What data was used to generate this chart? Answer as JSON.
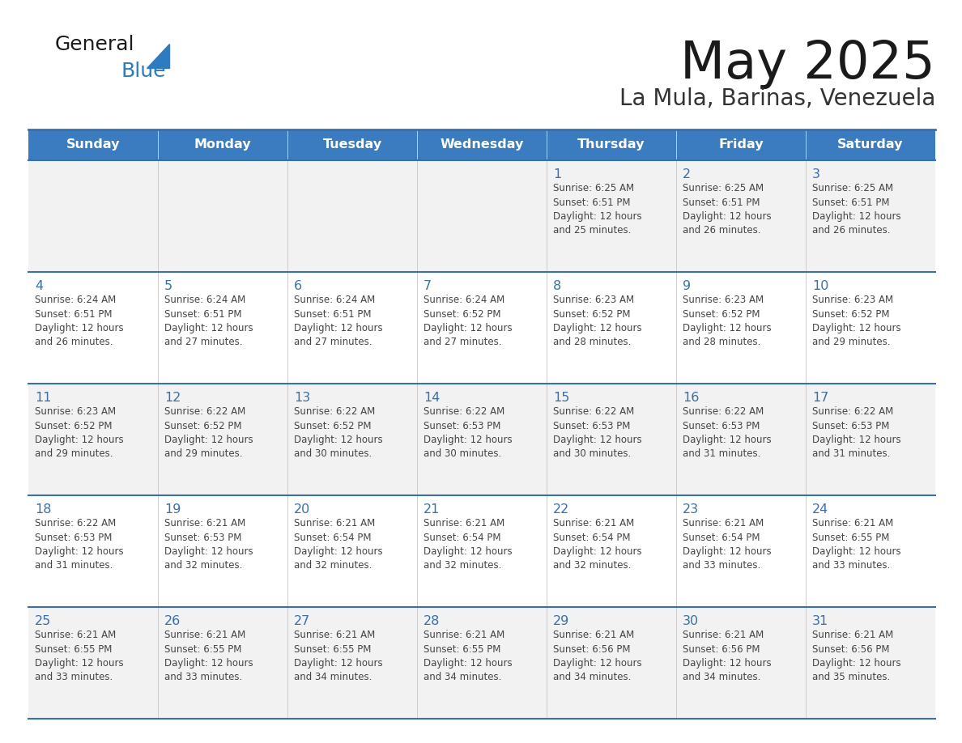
{
  "title": "May 2025",
  "subtitle": "La Mula, Barinas, Venezuela",
  "days_of_week": [
    "Sunday",
    "Monday",
    "Tuesday",
    "Wednesday",
    "Thursday",
    "Friday",
    "Saturday"
  ],
  "header_bg": "#3a7cbf",
  "header_text": "#ffffff",
  "row_bg": [
    "#f2f2f2",
    "#ffffff",
    "#f2f2f2",
    "#ffffff",
    "#f2f2f2"
  ],
  "separator_color": "#3a6fa8",
  "day_num_color": "#3a6fa8",
  "cell_text_color": "#444444",
  "title_color": "#1a1a1a",
  "subtitle_color": "#333333",
  "logo_general_color": "#1a1a1a",
  "logo_blue_color": "#2e7bbf",
  "weeks": [
    [
      {
        "day": null,
        "text": ""
      },
      {
        "day": null,
        "text": ""
      },
      {
        "day": null,
        "text": ""
      },
      {
        "day": null,
        "text": ""
      },
      {
        "day": 1,
        "text": "Sunrise: 6:25 AM\nSunset: 6:51 PM\nDaylight: 12 hours\nand 25 minutes."
      },
      {
        "day": 2,
        "text": "Sunrise: 6:25 AM\nSunset: 6:51 PM\nDaylight: 12 hours\nand 26 minutes."
      },
      {
        "day": 3,
        "text": "Sunrise: 6:25 AM\nSunset: 6:51 PM\nDaylight: 12 hours\nand 26 minutes."
      }
    ],
    [
      {
        "day": 4,
        "text": "Sunrise: 6:24 AM\nSunset: 6:51 PM\nDaylight: 12 hours\nand 26 minutes."
      },
      {
        "day": 5,
        "text": "Sunrise: 6:24 AM\nSunset: 6:51 PM\nDaylight: 12 hours\nand 27 minutes."
      },
      {
        "day": 6,
        "text": "Sunrise: 6:24 AM\nSunset: 6:51 PM\nDaylight: 12 hours\nand 27 minutes."
      },
      {
        "day": 7,
        "text": "Sunrise: 6:24 AM\nSunset: 6:52 PM\nDaylight: 12 hours\nand 27 minutes."
      },
      {
        "day": 8,
        "text": "Sunrise: 6:23 AM\nSunset: 6:52 PM\nDaylight: 12 hours\nand 28 minutes."
      },
      {
        "day": 9,
        "text": "Sunrise: 6:23 AM\nSunset: 6:52 PM\nDaylight: 12 hours\nand 28 minutes."
      },
      {
        "day": 10,
        "text": "Sunrise: 6:23 AM\nSunset: 6:52 PM\nDaylight: 12 hours\nand 29 minutes."
      }
    ],
    [
      {
        "day": 11,
        "text": "Sunrise: 6:23 AM\nSunset: 6:52 PM\nDaylight: 12 hours\nand 29 minutes."
      },
      {
        "day": 12,
        "text": "Sunrise: 6:22 AM\nSunset: 6:52 PM\nDaylight: 12 hours\nand 29 minutes."
      },
      {
        "day": 13,
        "text": "Sunrise: 6:22 AM\nSunset: 6:52 PM\nDaylight: 12 hours\nand 30 minutes."
      },
      {
        "day": 14,
        "text": "Sunrise: 6:22 AM\nSunset: 6:53 PM\nDaylight: 12 hours\nand 30 minutes."
      },
      {
        "day": 15,
        "text": "Sunrise: 6:22 AM\nSunset: 6:53 PM\nDaylight: 12 hours\nand 30 minutes."
      },
      {
        "day": 16,
        "text": "Sunrise: 6:22 AM\nSunset: 6:53 PM\nDaylight: 12 hours\nand 31 minutes."
      },
      {
        "day": 17,
        "text": "Sunrise: 6:22 AM\nSunset: 6:53 PM\nDaylight: 12 hours\nand 31 minutes."
      }
    ],
    [
      {
        "day": 18,
        "text": "Sunrise: 6:22 AM\nSunset: 6:53 PM\nDaylight: 12 hours\nand 31 minutes."
      },
      {
        "day": 19,
        "text": "Sunrise: 6:21 AM\nSunset: 6:53 PM\nDaylight: 12 hours\nand 32 minutes."
      },
      {
        "day": 20,
        "text": "Sunrise: 6:21 AM\nSunset: 6:54 PM\nDaylight: 12 hours\nand 32 minutes."
      },
      {
        "day": 21,
        "text": "Sunrise: 6:21 AM\nSunset: 6:54 PM\nDaylight: 12 hours\nand 32 minutes."
      },
      {
        "day": 22,
        "text": "Sunrise: 6:21 AM\nSunset: 6:54 PM\nDaylight: 12 hours\nand 32 minutes."
      },
      {
        "day": 23,
        "text": "Sunrise: 6:21 AM\nSunset: 6:54 PM\nDaylight: 12 hours\nand 33 minutes."
      },
      {
        "day": 24,
        "text": "Sunrise: 6:21 AM\nSunset: 6:55 PM\nDaylight: 12 hours\nand 33 minutes."
      }
    ],
    [
      {
        "day": 25,
        "text": "Sunrise: 6:21 AM\nSunset: 6:55 PM\nDaylight: 12 hours\nand 33 minutes."
      },
      {
        "day": 26,
        "text": "Sunrise: 6:21 AM\nSunset: 6:55 PM\nDaylight: 12 hours\nand 33 minutes."
      },
      {
        "day": 27,
        "text": "Sunrise: 6:21 AM\nSunset: 6:55 PM\nDaylight: 12 hours\nand 34 minutes."
      },
      {
        "day": 28,
        "text": "Sunrise: 6:21 AM\nSunset: 6:55 PM\nDaylight: 12 hours\nand 34 minutes."
      },
      {
        "day": 29,
        "text": "Sunrise: 6:21 AM\nSunset: 6:56 PM\nDaylight: 12 hours\nand 34 minutes."
      },
      {
        "day": 30,
        "text": "Sunrise: 6:21 AM\nSunset: 6:56 PM\nDaylight: 12 hours\nand 34 minutes."
      },
      {
        "day": 31,
        "text": "Sunrise: 6:21 AM\nSunset: 6:56 PM\nDaylight: 12 hours\nand 35 minutes."
      }
    ]
  ]
}
